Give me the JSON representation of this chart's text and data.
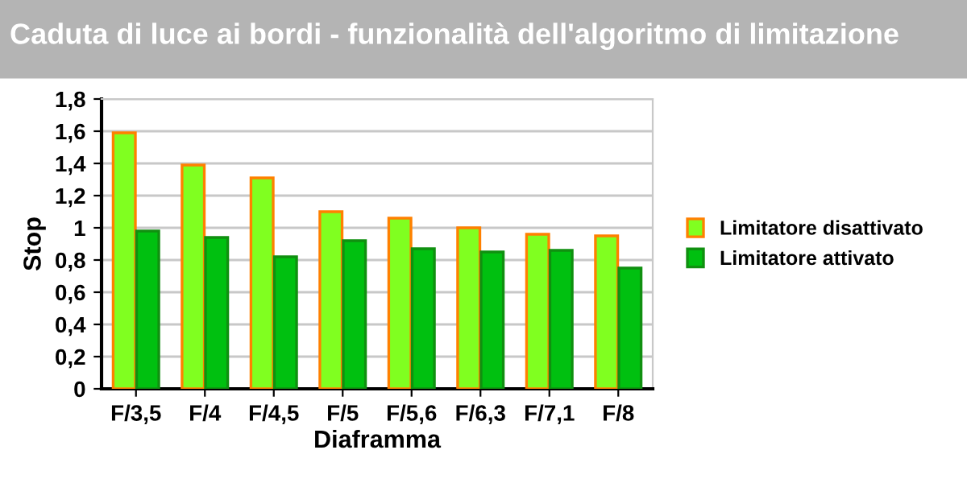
{
  "chart_data": {
    "type": "bar",
    "title": "Caduta di luce ai bordi - funzionalità dell'algoritmo di limitazione",
    "xlabel": "Diaframma",
    "ylabel": "Stop",
    "categories": [
      "F/3,5",
      "F/4",
      "F/4,5",
      "F/5",
      "F/5,6",
      "F/6,3",
      "F/7,1",
      "F/8"
    ],
    "series": [
      {
        "name": "Limitatore disattivato",
        "color": "#80ff20",
        "values": [
          1.59,
          1.39,
          1.31,
          1.1,
          1.06,
          1.0,
          0.96,
          0.95
        ]
      },
      {
        "name": "Limitatore attivato",
        "color": "#00c010",
        "values": [
          0.98,
          0.94,
          0.82,
          0.92,
          0.87,
          0.85,
          0.86,
          0.75
        ]
      }
    ],
    "ylim": [
      0,
      1.8
    ],
    "yticks": [
      0,
      {
        "value": 0.2,
        "label": "0,2"
      },
      {
        "value": 0.4,
        "label": "0,4"
      },
      {
        "value": 0.6,
        "label": "0,6"
      },
      {
        "value": 0.8,
        "label": "0,8"
      },
      1,
      {
        "value": 1.2,
        "label": "1,2"
      },
      {
        "value": 1.4,
        "label": "1,4"
      },
      {
        "value": 1.6,
        "label": "1,6"
      },
      {
        "value": 1.8,
        "label": "1,8"
      }
    ],
    "grid": "y",
    "legend": "right"
  }
}
